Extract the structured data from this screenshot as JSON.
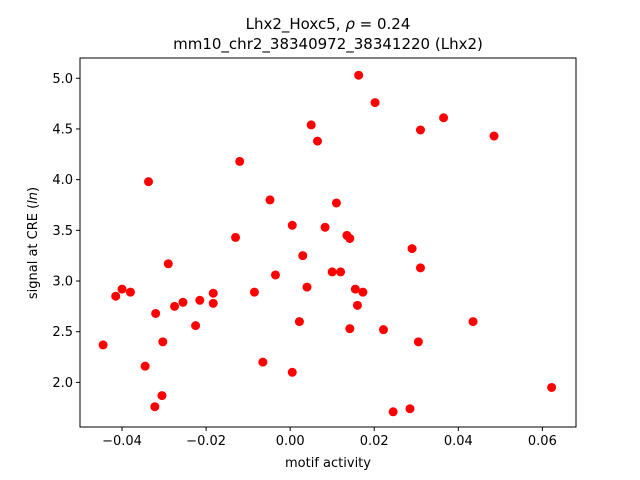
{
  "chart_data": {
    "type": "scatter",
    "title_line1_prefix": "Lhx2_Hoxc5, ",
    "title_line1_rho": "ρ",
    "title_line1_suffix": " = 0.24",
    "title_line2": "mm10_chr2_38340972_38341220 (Lhx2)",
    "xlabel": "motif activity",
    "ylabel_prefix": "signal at CRE (",
    "ylabel_italic": "ln",
    "ylabel_suffix": ")",
    "xlim": [
      -0.05,
      0.068
    ],
    "ylim": [
      1.56,
      5.2
    ],
    "xticks": [
      -0.04,
      -0.02,
      0.0,
      0.02,
      0.04,
      0.06
    ],
    "xtick_labels": [
      "−0.04",
      "−0.02",
      "0.00",
      "0.02",
      "0.04",
      "0.06"
    ],
    "yticks": [
      2.0,
      2.5,
      3.0,
      3.5,
      4.0,
      4.5,
      5.0
    ],
    "ytick_labels": [
      "2.0",
      "2.5",
      "3.0",
      "3.5",
      "4.0",
      "4.5",
      "5.0"
    ],
    "marker_color": "#ff0000",
    "grid": false,
    "points": [
      {
        "x": -0.0445,
        "y": 2.37
      },
      {
        "x": -0.0415,
        "y": 2.85
      },
      {
        "x": -0.04,
        "y": 2.92
      },
      {
        "x": -0.038,
        "y": 2.89
      },
      {
        "x": -0.0345,
        "y": 2.16
      },
      {
        "x": -0.0337,
        "y": 3.98
      },
      {
        "x": -0.032,
        "y": 2.68
      },
      {
        "x": -0.0322,
        "y": 1.76
      },
      {
        "x": -0.0305,
        "y": 1.87
      },
      {
        "x": -0.0303,
        "y": 2.4
      },
      {
        "x": -0.029,
        "y": 3.17
      },
      {
        "x": -0.0275,
        "y": 2.75
      },
      {
        "x": -0.0255,
        "y": 2.79
      },
      {
        "x": -0.0225,
        "y": 2.56
      },
      {
        "x": -0.0215,
        "y": 2.81
      },
      {
        "x": -0.0183,
        "y": 2.78
      },
      {
        "x": -0.0183,
        "y": 2.88
      },
      {
        "x": -0.013,
        "y": 3.43
      },
      {
        "x": -0.012,
        "y": 4.18
      },
      {
        "x": -0.0085,
        "y": 2.89
      },
      {
        "x": -0.0065,
        "y": 2.2
      },
      {
        "x": -0.0048,
        "y": 3.8
      },
      {
        "x": -0.0035,
        "y": 3.06
      },
      {
        "x": 0.0005,
        "y": 2.1
      },
      {
        "x": 0.0005,
        "y": 3.55
      },
      {
        "x": 0.0022,
        "y": 2.6
      },
      {
        "x": 0.003,
        "y": 3.25
      },
      {
        "x": 0.004,
        "y": 2.94
      },
      {
        "x": 0.005,
        "y": 4.54
      },
      {
        "x": 0.0065,
        "y": 4.38
      },
      {
        "x": 0.0083,
        "y": 3.53
      },
      {
        "x": 0.01,
        "y": 3.09
      },
      {
        "x": 0.011,
        "y": 3.77
      },
      {
        "x": 0.012,
        "y": 3.09
      },
      {
        "x": 0.0135,
        "y": 3.45
      },
      {
        "x": 0.0142,
        "y": 3.42
      },
      {
        "x": 0.0142,
        "y": 2.53
      },
      {
        "x": 0.0155,
        "y": 2.92
      },
      {
        "x": 0.016,
        "y": 2.76
      },
      {
        "x": 0.0163,
        "y": 5.03
      },
      {
        "x": 0.0173,
        "y": 2.89
      },
      {
        "x": 0.0202,
        "y": 4.76
      },
      {
        "x": 0.0222,
        "y": 2.52
      },
      {
        "x": 0.0245,
        "y": 1.71
      },
      {
        "x": 0.0285,
        "y": 1.74
      },
      {
        "x": 0.029,
        "y": 3.32
      },
      {
        "x": 0.0305,
        "y": 2.4
      },
      {
        "x": 0.031,
        "y": 3.13
      },
      {
        "x": 0.031,
        "y": 4.49
      },
      {
        "x": 0.0365,
        "y": 4.61
      },
      {
        "x": 0.0435,
        "y": 2.6
      },
      {
        "x": 0.0485,
        "y": 4.43
      },
      {
        "x": 0.0622,
        "y": 1.95
      }
    ]
  }
}
